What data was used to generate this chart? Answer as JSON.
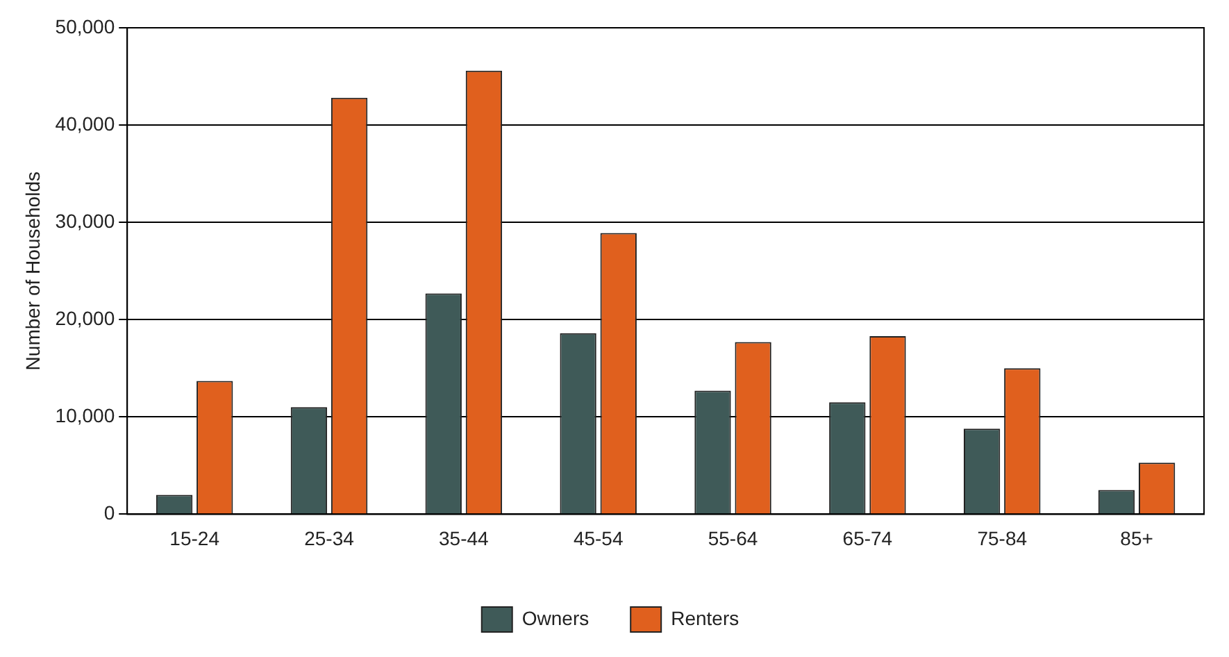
{
  "chart_data": {
    "type": "bar",
    "ylabel": "Number of Households",
    "categories": [
      "15-24",
      "25-34",
      "35-44",
      "45-54",
      "55-64",
      "65-74",
      "75-84",
      "85+"
    ],
    "series": [
      {
        "name": "Owners",
        "color": "#3f5a58",
        "values": [
          2000,
          11000,
          22700,
          18600,
          12700,
          11500,
          8800,
          2500
        ]
      },
      {
        "name": "Renters",
        "color": "#e0601e",
        "values": [
          13700,
          42800,
          45600,
          28900,
          17700,
          18300,
          15000,
          5300
        ]
      }
    ],
    "ylim": [
      0,
      50000
    ],
    "yticks": [
      {
        "value": 0,
        "label": "0"
      },
      {
        "value": 10000,
        "label": "10,000"
      },
      {
        "value": 20000,
        "label": "20,000"
      },
      {
        "value": 30000,
        "label": "30,000"
      },
      {
        "value": 40000,
        "label": "40,000"
      },
      {
        "value": 50000,
        "label": "50,000"
      }
    ],
    "grid": "y",
    "legend": "bottom"
  }
}
